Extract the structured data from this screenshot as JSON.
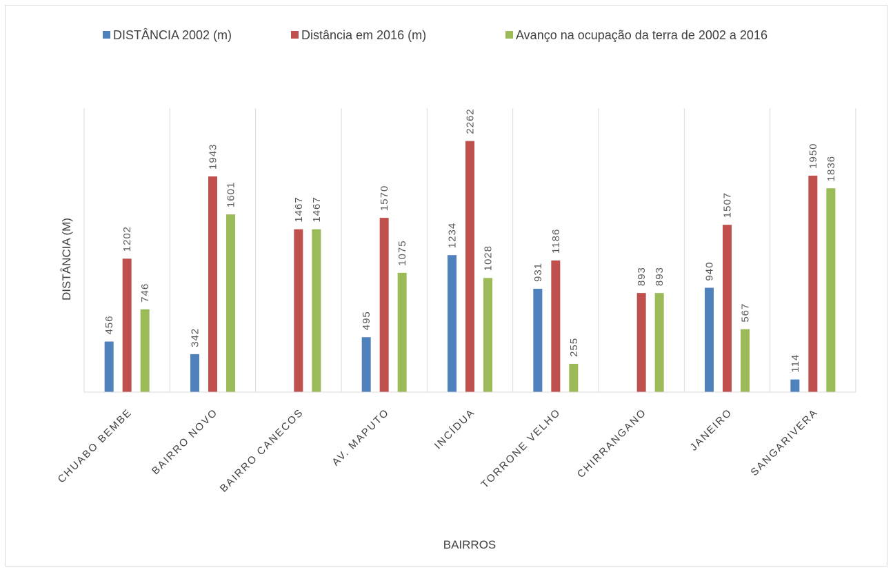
{
  "chart_data": {
    "type": "bar",
    "title": "",
    "xlabel": "BAIRROS",
    "ylabel": "DISTÂNCIA (M)",
    "ylim": [
      0,
      2500
    ],
    "grid": "vertical category separators",
    "legend_position": "top",
    "categories": [
      "CHUABO BEMBE",
      "BAIRRO NOVO",
      "BAIRRO CANECOS",
      "AV. MAPUTO",
      "INCÍDUA",
      "TORRONE VELHO",
      "CHIRRANGANO",
      "JANEIRO",
      "SANGARIVERA"
    ],
    "series": [
      {
        "name": "DISTÂNCIA 2002 (m)",
        "color": "#4f81bd",
        "values": [
          456,
          342,
          null,
          495,
          1234,
          931,
          null,
          940,
          114
        ]
      },
      {
        "name": "Distância em 2016 (m)",
        "color": "#c0504d",
        "values": [
          1202,
          1943,
          1467,
          1570,
          2262,
          1186,
          893,
          1507,
          1950
        ]
      },
      {
        "name": "Avanço na ocupação da terra de 2002 a 2016",
        "color": "#9bbb59",
        "values": [
          746,
          1601,
          1467,
          1075,
          1028,
          255,
          893,
          567,
          1836
        ]
      }
    ]
  }
}
